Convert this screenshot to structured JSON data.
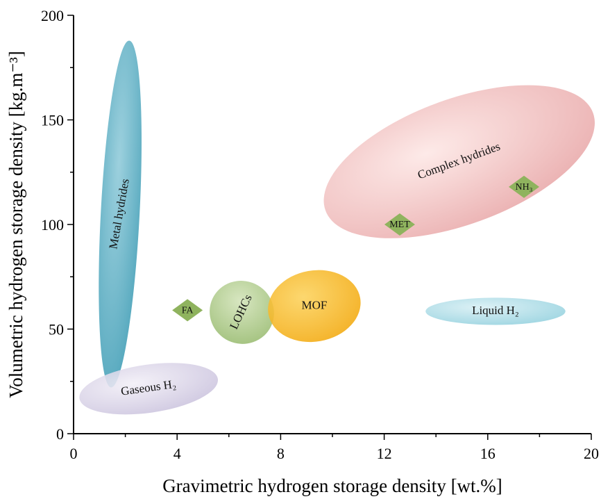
{
  "chart_data": {
    "type": "scatter",
    "title": "",
    "xlabel": "Gravimetric hydrogen storage density [wt.%]",
    "ylabel": "Volumetric hydrogen storage density [kg.m⁻³]",
    "xlim": [
      0,
      20
    ],
    "ylim": [
      0,
      200
    ],
    "xticks": [
      "0",
      "4",
      "8",
      "12",
      "16",
      "20"
    ],
    "yticks": [
      "0",
      "50",
      "100",
      "150",
      "200"
    ],
    "grid": false,
    "regions": [
      {
        "label": "Metal hydrides",
        "cx": 1.8,
        "cy": 105,
        "rx": 0.75,
        "ry": 83,
        "rotate": 3,
        "color": "#3a9ab3",
        "color2": "#8fcad9"
      },
      {
        "label": "Complex hydrides",
        "cx": 14.9,
        "cy": 130,
        "rx": 5.5,
        "ry": 30,
        "rotate": -20,
        "color": "#e7a3a4",
        "color2": "#fde7e5"
      },
      {
        "label": "Gaseous H₂",
        "cx": 2.9,
        "cy": 21.5,
        "rx": 2.7,
        "ry": 11.5,
        "rotate": -8,
        "color": "#c8c0dc",
        "color2": "#f2eff7"
      },
      {
        "label": "LOHCs",
        "cx": 6.5,
        "cy": 58,
        "rx": 1.25,
        "ry": 15,
        "rotate": 25,
        "color": "#94b86a",
        "color2": "#d2e3b8"
      },
      {
        "label": "MOF",
        "cx": 9.3,
        "cy": 61,
        "rx": 1.8,
        "ry": 17,
        "rotate": -10,
        "color": "#f2a608",
        "color2": "#fcd25b"
      },
      {
        "label": "Liquid H₂",
        "cx": 16.3,
        "cy": 58.5,
        "rx": 2.7,
        "ry": 6.5,
        "rotate": 0,
        "color": "#8fcfdd",
        "color2": "#d8eff4"
      }
    ],
    "points": [
      {
        "label": "FA",
        "x": 4.4,
        "y": 59,
        "color": "#8fb35e"
      },
      {
        "label": "MET",
        "x": 12.6,
        "y": 100,
        "color": "#8fb35e"
      },
      {
        "label": "NH₃",
        "x": 17.4,
        "y": 118,
        "color": "#8fb35e"
      }
    ]
  }
}
